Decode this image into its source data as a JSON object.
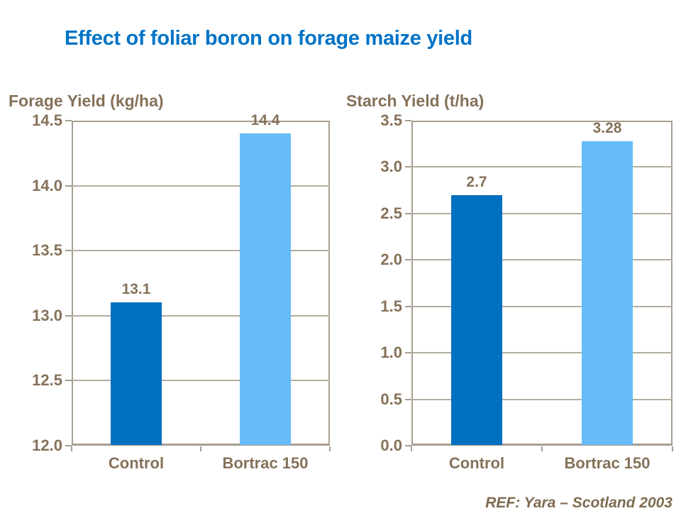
{
  "title": "Effect of foliar boron on forage maize yield",
  "ref": "REF: Yara – Scotland 2003",
  "colors": {
    "title_blue": "#0073C6",
    "dark_blue": "#0070C0",
    "light_blue": "#66BBF8",
    "brown_text": "#857159",
    "ref_brown": "#7E6B50",
    "axis_border": "#A89E92",
    "gridline": "#B5ACA0"
  },
  "chart_data": [
    {
      "type": "bar",
      "title": "Forage Yield (kg/ha)",
      "categories": [
        "Control",
        "Bortrac 150"
      ],
      "values": [
        13.1,
        14.4
      ],
      "value_labels": [
        "13.1",
        "14.4"
      ],
      "ylim": [
        12.0,
        14.5
      ],
      "ytick_step": 0.5,
      "ytick_labels": [
        "12.0",
        "12.5",
        "13.0",
        "13.5",
        "14.0",
        "14.5"
      ],
      "grid": true,
      "legend": "none",
      "bar_colors": [
        "#0070C0",
        "#66BBF8"
      ]
    },
    {
      "type": "bar",
      "title": "Starch Yield (t/ha)",
      "categories": [
        "Control",
        "Bortrac 150"
      ],
      "values": [
        2.7,
        3.28
      ],
      "value_labels": [
        "2.7",
        "3.28"
      ],
      "ylim": [
        0.0,
        3.5
      ],
      "ytick_step": 0.5,
      "ytick_labels": [
        "0.0",
        "0.5",
        "1.0",
        "1.5",
        "2.0",
        "2.5",
        "3.0",
        "3.5"
      ],
      "grid": true,
      "legend": "none",
      "bar_colors": [
        "#0070C0",
        "#66BBF8"
      ]
    }
  ]
}
